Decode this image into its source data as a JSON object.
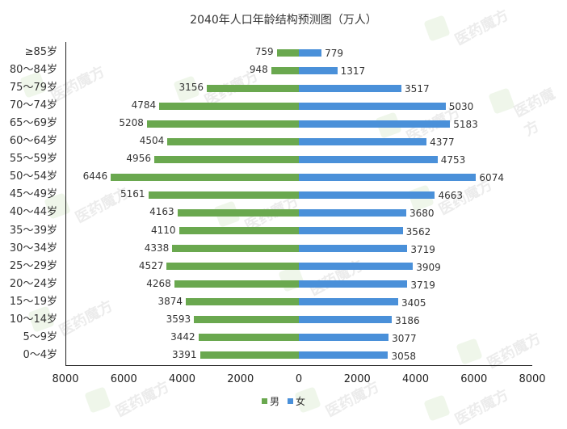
{
  "title": "2040年人口年龄结构预测图（万人）",
  "legend": {
    "male_label": "男",
    "female_label": "女",
    "male_color": "#6aa84f",
    "female_color": "#4a90d9"
  },
  "watermark": "医药魔方",
  "x_ticks": [
    "8000",
    "6000",
    "4000",
    "2000",
    "0",
    "2000",
    "4000",
    "6000",
    "8000"
  ],
  "chart_data": {
    "type": "bar",
    "orientation": "horizontal",
    "subtype": "population-pyramid",
    "title": "2040年人口年龄结构预测图（万人）",
    "xlabel": "",
    "ylabel": "",
    "xlim": [
      -8000,
      8000
    ],
    "x_tick_labels": [
      "8000",
      "6000",
      "4000",
      "2000",
      "0",
      "2000",
      "4000",
      "6000",
      "8000"
    ],
    "grid": false,
    "legend_position": "bottom",
    "categories": [
      "≥85岁",
      "80～84岁",
      "75～79岁",
      "70～74岁",
      "65～69岁",
      "60～64岁",
      "55～59岁",
      "50～54岁",
      "45～49岁",
      "40～44岁",
      "35～39岁",
      "30～34岁",
      "25～29岁",
      "20～24岁",
      "15～19岁",
      "10～14岁",
      "5～9岁",
      "0～4岁"
    ],
    "series": [
      {
        "name": "男",
        "color": "#6aa84f",
        "direction": "left",
        "values": [
          759,
          948,
          3156,
          4784,
          5208,
          4504,
          4956,
          6446,
          5161,
          4163,
          4110,
          4338,
          4527,
          4268,
          3874,
          3593,
          3442,
          3391
        ]
      },
      {
        "name": "女",
        "color": "#4a90d9",
        "direction": "right",
        "values": [
          779,
          1317,
          3517,
          5030,
          5183,
          4377,
          4753,
          6074,
          4663,
          3680,
          3562,
          3719,
          3909,
          3719,
          3405,
          3186,
          3077,
          3058
        ]
      }
    ]
  }
}
